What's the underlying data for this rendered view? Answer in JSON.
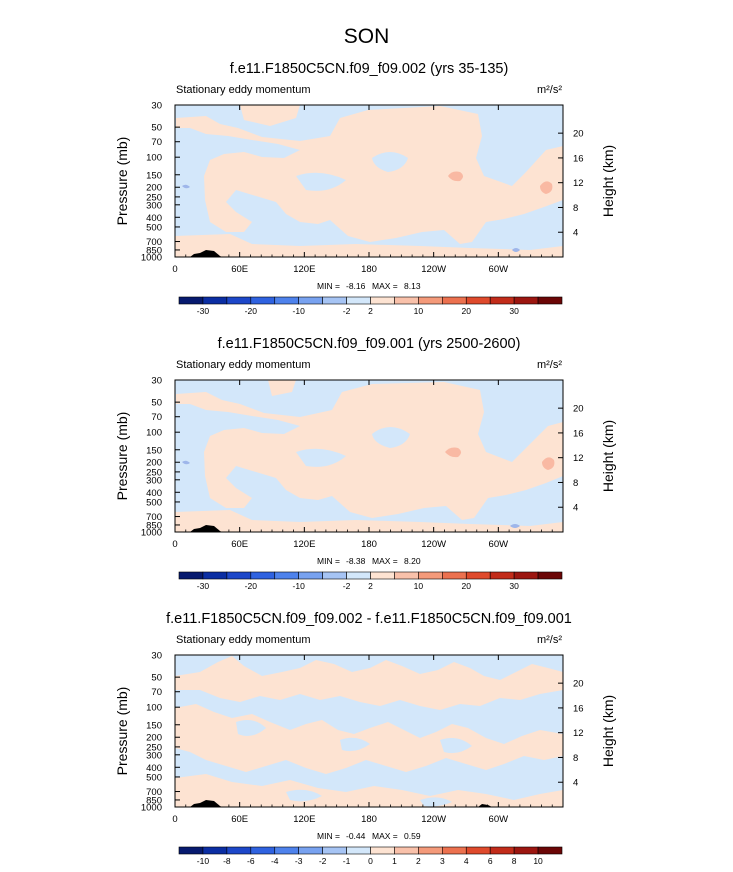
{
  "figure": {
    "title": "SON"
  },
  "colors": {
    "neutral": "#d3e7fa",
    "positive": "#fde3d2",
    "positive2": "#f9b9a3",
    "negative": "#9eb6ea"
  },
  "chart_data": [
    {
      "type": "heatmap",
      "title": "f.e11.F1850C5CN.f09_f09.002 (yrs 35-135)",
      "left_label": "Stationary eddy momentum",
      "right_label": "m²/s²",
      "xlabel": "",
      "ylabel": "Pressure (mb)",
      "y2label": "Height (km)",
      "x_ticks": [
        "0",
        "60E",
        "120E",
        "180",
        "120W",
        "60W"
      ],
      "x_tick_values": [
        0,
        60,
        120,
        180,
        240,
        300
      ],
      "xlim": [
        0,
        360
      ],
      "y_ticks": [
        "30",
        "50",
        "70",
        "100",
        "150",
        "200",
        "250",
        "300",
        "400",
        "500",
        "700",
        "850",
        "1000"
      ],
      "y_tick_values": [
        30,
        50,
        70,
        100,
        150,
        200,
        250,
        300,
        400,
        500,
        700,
        850,
        1000
      ],
      "ylim": [
        1000,
        30
      ],
      "y_scale": "log",
      "y2_ticks": [
        "4",
        "8",
        "12",
        "16",
        "20"
      ],
      "y2_tick_values": [
        4,
        8,
        12,
        16,
        20
      ],
      "min_label": "MIN =",
      "min_value": "-8.16",
      "max_label": "MAX =",
      "max_value": "8.13",
      "colorbar_labels": [
        "-30",
        "-20",
        "-10",
        "-2",
        "2",
        "10",
        "20",
        "30"
      ],
      "colorbar_levels": [
        -35,
        -30,
        -25,
        -20,
        -15,
        -10,
        -5,
        -2,
        2,
        5,
        10,
        15,
        20,
        25,
        30,
        35
      ],
      "colorbar_colors": [
        "#071a6f",
        "#0b2ea3",
        "#1d47c9",
        "#2f62e0",
        "#4e82ec",
        "#78a2f0",
        "#a6c4f4",
        "#d3e7fa",
        "#fde3d2",
        "#f9c1aa",
        "#f49a7a",
        "#ec714f",
        "#df4a2c",
        "#c22c1a",
        "#9c1610",
        "#6b0606"
      ]
    },
    {
      "type": "heatmap",
      "title": "f.e11.F1850C5CN.f09_f09.001 (yrs 2500-2600)",
      "left_label": "Stationary eddy momentum",
      "right_label": "m²/s²",
      "xlabel": "",
      "ylabel": "Pressure (mb)",
      "y2label": "Height (km)",
      "x_ticks": [
        "0",
        "60E",
        "120E",
        "180",
        "120W",
        "60W"
      ],
      "x_tick_values": [
        0,
        60,
        120,
        180,
        240,
        300
      ],
      "xlim": [
        0,
        360
      ],
      "y_ticks": [
        "30",
        "50",
        "70",
        "100",
        "150",
        "200",
        "250",
        "300",
        "400",
        "500",
        "700",
        "850",
        "1000"
      ],
      "y_tick_values": [
        30,
        50,
        70,
        100,
        150,
        200,
        250,
        300,
        400,
        500,
        700,
        850,
        1000
      ],
      "ylim": [
        1000,
        30
      ],
      "y_scale": "log",
      "y2_ticks": [
        "4",
        "8",
        "12",
        "16",
        "20"
      ],
      "y2_tick_values": [
        4,
        8,
        12,
        16,
        20
      ],
      "min_label": "MIN =",
      "min_value": "-8.38",
      "max_label": "MAX =",
      "max_value": "8.20",
      "colorbar_labels": [
        "-30",
        "-20",
        "-10",
        "-2",
        "2",
        "10",
        "20",
        "30"
      ],
      "colorbar_levels": [
        -35,
        -30,
        -25,
        -20,
        -15,
        -10,
        -5,
        -2,
        2,
        5,
        10,
        15,
        20,
        25,
        30,
        35
      ],
      "colorbar_colors": [
        "#071a6f",
        "#0b2ea3",
        "#1d47c9",
        "#2f62e0",
        "#4e82ec",
        "#78a2f0",
        "#a6c4f4",
        "#d3e7fa",
        "#fde3d2",
        "#f9c1aa",
        "#f49a7a",
        "#ec714f",
        "#df4a2c",
        "#c22c1a",
        "#9c1610",
        "#6b0606"
      ]
    },
    {
      "type": "heatmap",
      "title": "f.e11.F1850C5CN.f09_f09.002 - f.e11.F1850C5CN.f09_f09.001",
      "left_label": "Stationary eddy momentum",
      "right_label": "m²/s²",
      "xlabel": "",
      "ylabel": "Pressure (mb)",
      "y2label": "Height (km)",
      "x_ticks": [
        "0",
        "60E",
        "120E",
        "180",
        "120W",
        "60W"
      ],
      "x_tick_values": [
        0,
        60,
        120,
        180,
        240,
        300
      ],
      "xlim": [
        0,
        360
      ],
      "y_ticks": [
        "30",
        "50",
        "70",
        "100",
        "150",
        "200",
        "250",
        "300",
        "400",
        "500",
        "700",
        "850",
        "1000"
      ],
      "y_tick_values": [
        30,
        50,
        70,
        100,
        150,
        200,
        250,
        300,
        400,
        500,
        700,
        850,
        1000
      ],
      "ylim": [
        1000,
        30
      ],
      "y_scale": "log",
      "y2_ticks": [
        "4",
        "8",
        "12",
        "16",
        "20"
      ],
      "y2_tick_values": [
        4,
        8,
        12,
        16,
        20
      ],
      "min_label": "MIN =",
      "min_value": "-0.44",
      "max_label": "MAX =",
      "max_value": "0.59",
      "colorbar_labels": [
        "-10",
        "-8",
        "-6",
        "-4",
        "-3",
        "-2",
        "-1",
        "0",
        "1",
        "2",
        "3",
        "4",
        "6",
        "8",
        "10"
      ],
      "colorbar_levels": [
        -12,
        -10,
        -8,
        -6,
        -4,
        -3,
        -2,
        -1,
        0,
        1,
        2,
        3,
        4,
        6,
        8,
        10,
        12
      ],
      "colorbar_colors": [
        "#071a6f",
        "#0b2ea3",
        "#1d47c9",
        "#2f62e0",
        "#4e82ec",
        "#78a2f0",
        "#a6c4f4",
        "#d3e7fa",
        "#fde3d2",
        "#f9c1aa",
        "#f49a7a",
        "#ec714f",
        "#df4a2c",
        "#c22c1a",
        "#9c1610",
        "#6b0606"
      ]
    }
  ]
}
